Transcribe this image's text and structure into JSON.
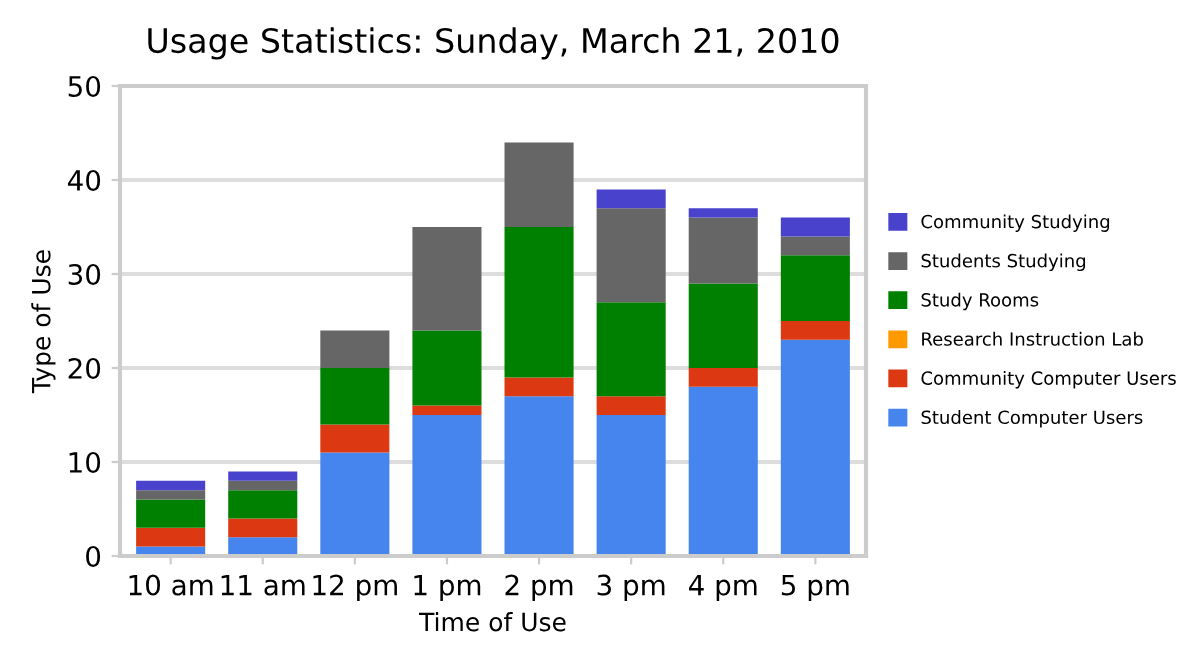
{
  "chart_data": {
    "type": "bar",
    "title": "Usage Statistics: Sunday, March 21, 2010",
    "xlabel": "Time of Use",
    "ylabel": "Type of Use",
    "categories": [
      "10 am",
      "11 am",
      "12 pm",
      "1 pm",
      "2 pm",
      "3 pm",
      "4 pm",
      "5 pm"
    ],
    "stacked": true,
    "ylim": [
      0,
      50
    ],
    "yticks": [
      0,
      10,
      20,
      30,
      40,
      50
    ],
    "grid": "y",
    "legend": "right",
    "series": [
      {
        "name": "Student Computer Users",
        "color": "#4684ee",
        "values": [
          1,
          2,
          11,
          15,
          17,
          15,
          18,
          23
        ]
      },
      {
        "name": "Community Computer Users",
        "color": "#dc3912",
        "values": [
          2,
          2,
          3,
          1,
          2,
          2,
          2,
          2
        ]
      },
      {
        "name": "Research Instruction Lab",
        "color": "#ff9900",
        "values": [
          0,
          0,
          0,
          0,
          0,
          0,
          0,
          0
        ]
      },
      {
        "name": "Study Rooms",
        "color": "#008000",
        "values": [
          3,
          3,
          6,
          8,
          16,
          10,
          9,
          7
        ]
      },
      {
        "name": "Students Studying",
        "color": "#666666",
        "values": [
          1,
          1,
          4,
          11,
          9,
          10,
          7,
          2
        ]
      },
      {
        "name": "Community Studying",
        "color": "#4942cc",
        "values": [
          1,
          1,
          0,
          0,
          0,
          2,
          1,
          2
        ]
      }
    ]
  }
}
